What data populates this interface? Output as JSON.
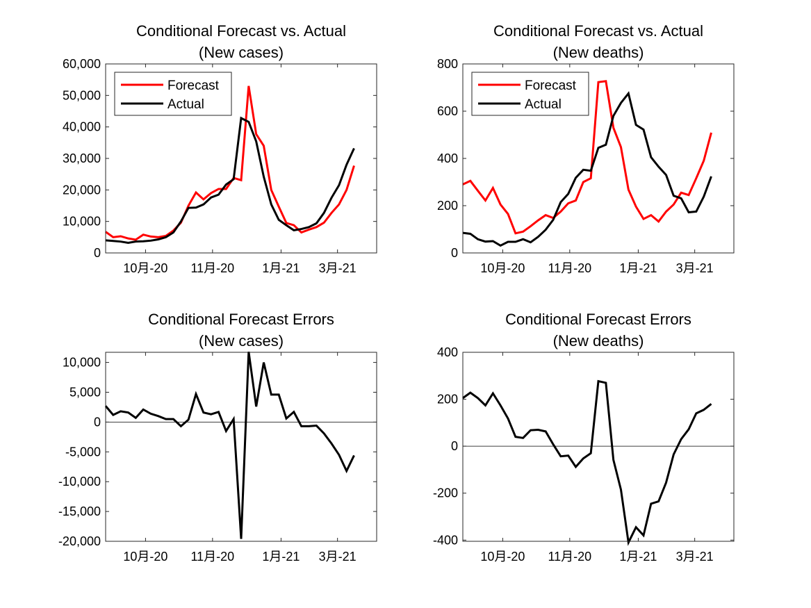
{
  "chart_data": [
    {
      "type": "line",
      "title": [
        "Conditional Forecast vs. Actual",
        "(New cases)"
      ],
      "xlabel": "",
      "ylabel": "",
      "xticks": [
        {
          "label": "10月-20",
          "x": 5.3
        },
        {
          "label": "11月-20",
          "x": 14.2
        },
        {
          "label": "1月-21",
          "x": 23.3
        },
        {
          "label": "3月-21",
          "x": 30.8
        }
      ],
      "xlim": [
        0,
        36
      ],
      "ylim": [
        0,
        60000
      ],
      "yticks": [
        0,
        10000,
        20000,
        30000,
        40000,
        50000,
        60000
      ],
      "yticklabels": [
        "0",
        "10,000",
        "20,000",
        "30,000",
        "40,000",
        "50,000",
        "60,000"
      ],
      "zero_line": false,
      "legend": {
        "position": "top-left"
      },
      "series": [
        {
          "name": "Forecast",
          "color": "#ff0000",
          "values": [
            6700,
            5000,
            5300,
            4600,
            4200,
            5800,
            5200,
            5000,
            5400,
            7100,
            9600,
            15000,
            19200,
            17000,
            19000,
            20300,
            20300,
            23800,
            23100,
            53000,
            37700,
            34000,
            20000,
            14700,
            9500,
            8800,
            6500,
            7400,
            8200,
            9600,
            12700,
            15400,
            20000,
            27700
          ]
        },
        {
          "name": "Actual",
          "color": "#000000",
          "values": [
            4000,
            3800,
            3600,
            3200,
            3600,
            3700,
            3900,
            4300,
            5000,
            6500,
            10000,
            14300,
            14400,
            15400,
            17600,
            18500,
            21700,
            23400,
            42800,
            41600,
            35400,
            24200,
            15400,
            10500,
            8800,
            7200,
            7600,
            8200,
            9400,
            12700,
            17500,
            21500,
            28000,
            33200
          ]
        }
      ]
    },
    {
      "type": "line",
      "title": [
        "Conditional Forecast vs. Actual",
        "(New deaths)"
      ],
      "xlabel": "",
      "ylabel": "",
      "xticks": [
        {
          "label": "10月-20",
          "x": 5.3
        },
        {
          "label": "11月-20",
          "x": 14.2
        },
        {
          "label": "1月-21",
          "x": 23.3
        },
        {
          "label": "3月-21",
          "x": 30.8
        }
      ],
      "xlim": [
        0,
        36
      ],
      "ylim": [
        0,
        800
      ],
      "yticks": [
        0,
        200,
        400,
        600,
        800
      ],
      "yticklabels": [
        "0",
        "200",
        "400",
        "600",
        "800"
      ],
      "zero_line": false,
      "legend": {
        "position": "top-left"
      },
      "series": [
        {
          "name": "Forecast",
          "color": "#ff0000",
          "values": [
            290,
            305,
            263,
            222,
            275,
            205,
            165,
            83,
            90,
            113,
            138,
            160,
            148,
            175,
            210,
            222,
            300,
            316,
            723,
            727,
            530,
            448,
            268,
            196,
            144,
            160,
            133,
            175,
            205,
            255,
            245,
            316,
            390,
            509
          ]
        },
        {
          "name": "Actual",
          "color": "#000000",
          "values": [
            85,
            81,
            58,
            48,
            50,
            31,
            47,
            47,
            58,
            45,
            68,
            98,
            140,
            215,
            250,
            318,
            352,
            348,
            445,
            458,
            580,
            635,
            675,
            542,
            522,
            405,
            365,
            330,
            242,
            231,
            172,
            175,
            238,
            324
          ]
        }
      ]
    },
    {
      "type": "line",
      "title": [
        "Conditional Forecast Errors",
        "(New cases)"
      ],
      "xlabel": "",
      "ylabel": "",
      "xticks": [
        {
          "label": "10月-20",
          "x": 5.3
        },
        {
          "label": "11月-20",
          "x": 14.2
        },
        {
          "label": "1月-21",
          "x": 23.3
        },
        {
          "label": "3月-21",
          "x": 30.8
        }
      ],
      "xlim": [
        0,
        36
      ],
      "ylim": [
        -20000,
        11700
      ],
      "yticks": [
        -20000,
        -15000,
        -10000,
        -5000,
        0,
        5000,
        10000
      ],
      "yticklabels": [
        "-20,000",
        "-15,000",
        "-10,000",
        "-5,000",
        "0",
        "5,000",
        "10,000"
      ],
      "zero_line": true,
      "series": [
        {
          "name": "",
          "color": "#000000",
          "values": [
            2700,
            1200,
            1800,
            1600,
            700,
            2100,
            1400,
            1000,
            500,
            500,
            -700,
            400,
            4700,
            1600,
            1300,
            1700,
            -1500,
            500,
            -19600,
            11800,
            2600,
            10000,
            4600,
            4600,
            600,
            1700,
            -700,
            -700,
            -600,
            -1900,
            -3600,
            -5500,
            -8200,
            -5600
          ]
        }
      ]
    },
    {
      "type": "line",
      "title": [
        "Conditional Forecast Errors",
        "(New deaths)"
      ],
      "xlabel": "",
      "ylabel": "",
      "xticks": [
        {
          "label": "10月-20",
          "x": 5.3
        },
        {
          "label": "11月-20",
          "x": 14.2
        },
        {
          "label": "1月-21",
          "x": 23.3
        },
        {
          "label": "3月-21",
          "x": 30.8
        }
      ],
      "xlim": [
        0,
        36
      ],
      "ylim": [
        -405,
        400
      ],
      "yticks": [
        -400,
        -200,
        0,
        200,
        400
      ],
      "yticklabels": [
        "-400",
        "-200",
        "0",
        "200",
        "400"
      ],
      "zero_line": true,
      "series": [
        {
          "name": "",
          "color": "#000000",
          "values": [
            205,
            228,
            205,
            174,
            225,
            174,
            118,
            40,
            35,
            68,
            70,
            63,
            8,
            -43,
            -40,
            -88,
            -52,
            -30,
            277,
            270,
            -58,
            -185,
            -410,
            -345,
            -380,
            -245,
            -235,
            -155,
            -35,
            30,
            72,
            140,
            155,
            180
          ]
        }
      ]
    }
  ]
}
